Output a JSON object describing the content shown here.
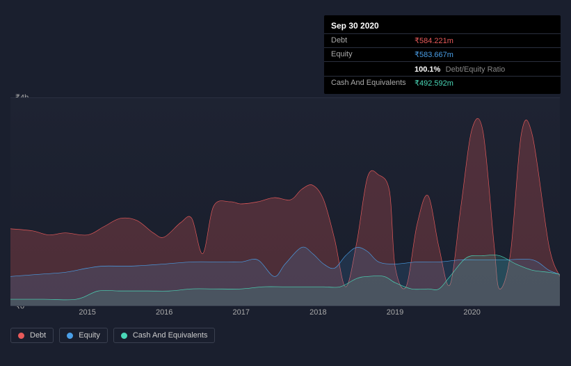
{
  "tooltip": {
    "date": "Sep 30 2020",
    "debt_label": "Debt",
    "debt_value": "₹584.221m",
    "debt_color": "#e85a5a",
    "equity_label": "Equity",
    "equity_value": "₹583.667m",
    "equity_color": "#4a9fe8",
    "ratio_value": "100.1%",
    "ratio_label": "Debt/Equity Ratio",
    "cash_label": "Cash And Equivalents",
    "cash_value": "₹492.592m",
    "cash_color": "#4ad8b8"
  },
  "chart": {
    "type": "area",
    "background_color": "#1a1f2e",
    "grid_color": "#2a3040",
    "y_axis": {
      "ticks": [
        {
          "pos": 0,
          "label": "₹4b"
        },
        {
          "pos": 1,
          "label": "₹0"
        }
      ],
      "ymin": 0,
      "ymax": 4
    },
    "x_axis": {
      "labels": [
        "2015",
        "2016",
        "2017",
        "2018",
        "2019",
        "2020"
      ],
      "positions_pct": [
        14,
        28,
        42,
        56,
        70,
        84
      ]
    },
    "series": [
      {
        "name": "Debt",
        "color": "#e85a5a",
        "fill_opacity": 0.25,
        "line_width": 2,
        "points_pct": [
          [
            0,
            63
          ],
          [
            4,
            64
          ],
          [
            7,
            66
          ],
          [
            10,
            65
          ],
          [
            14,
            66
          ],
          [
            17,
            62
          ],
          [
            20,
            58
          ],
          [
            23,
            59
          ],
          [
            26,
            65
          ],
          [
            28,
            67
          ],
          [
            31,
            60
          ],
          [
            33,
            58
          ],
          [
            35,
            75
          ],
          [
            37,
            52
          ],
          [
            40,
            50
          ],
          [
            42,
            51
          ],
          [
            45,
            50
          ],
          [
            48,
            48
          ],
          [
            51,
            49
          ],
          [
            53,
            44
          ],
          [
            55,
            42
          ],
          [
            57,
            49
          ],
          [
            59,
            68
          ],
          [
            61,
            91
          ],
          [
            63,
            70
          ],
          [
            65,
            38
          ],
          [
            67,
            37
          ],
          [
            69,
            45
          ],
          [
            70,
            81
          ],
          [
            72,
            91
          ],
          [
            74,
            61
          ],
          [
            76,
            47
          ],
          [
            78,
            72
          ],
          [
            80,
            90
          ],
          [
            82,
            52
          ],
          [
            84,
            15
          ],
          [
            86,
            16
          ],
          [
            88,
            70
          ],
          [
            89,
            92
          ],
          [
            91,
            75
          ],
          [
            93,
            17
          ],
          [
            95,
            18
          ],
          [
            98,
            71
          ],
          [
            100,
            86
          ]
        ]
      },
      {
        "name": "Equity",
        "color": "#4a9fe8",
        "fill_opacity": 0.15,
        "line_width": 2,
        "points_pct": [
          [
            0,
            86
          ],
          [
            5,
            85
          ],
          [
            10,
            84
          ],
          [
            14,
            82
          ],
          [
            17,
            81
          ],
          [
            22,
            81
          ],
          [
            28,
            80
          ],
          [
            33,
            79
          ],
          [
            38,
            79
          ],
          [
            42,
            79
          ],
          [
            45,
            78
          ],
          [
            48,
            86
          ],
          [
            50,
            80
          ],
          [
            53,
            72
          ],
          [
            55,
            75
          ],
          [
            57,
            80
          ],
          [
            59,
            82
          ],
          [
            61,
            76
          ],
          [
            63,
            72
          ],
          [
            65,
            74
          ],
          [
            67,
            79
          ],
          [
            70,
            80
          ],
          [
            74,
            79
          ],
          [
            78,
            79
          ],
          [
            82,
            78
          ],
          [
            86,
            78
          ],
          [
            90,
            78
          ],
          [
            95,
            78
          ],
          [
            98,
            83
          ],
          [
            100,
            85
          ]
        ]
      },
      {
        "name": "Cash And Equivalents",
        "color": "#4ad8b8",
        "fill_opacity": 0.15,
        "line_width": 2,
        "points_pct": [
          [
            0,
            97
          ],
          [
            6,
            97
          ],
          [
            12,
            97
          ],
          [
            16,
            93
          ],
          [
            20,
            93
          ],
          [
            25,
            93
          ],
          [
            29,
            93
          ],
          [
            33,
            92
          ],
          [
            37,
            92
          ],
          [
            42,
            92
          ],
          [
            46,
            91
          ],
          [
            50,
            91
          ],
          [
            54,
            91
          ],
          [
            57,
            91
          ],
          [
            60,
            91
          ],
          [
            63,
            87
          ],
          [
            65,
            86
          ],
          [
            68,
            86
          ],
          [
            70,
            89
          ],
          [
            73,
            92
          ],
          [
            76,
            92
          ],
          [
            78,
            92
          ],
          [
            80,
            86
          ],
          [
            83,
            77
          ],
          [
            86,
            76
          ],
          [
            89,
            76
          ],
          [
            92,
            80
          ],
          [
            95,
            83
          ],
          [
            98,
            84
          ],
          [
            100,
            85
          ]
        ]
      }
    ],
    "legend": {
      "items": [
        {
          "label": "Debt",
          "color": "#e85a5a"
        },
        {
          "label": "Equity",
          "color": "#4a9fe8"
        },
        {
          "label": "Cash And Equivalents",
          "color": "#4ad8b8"
        }
      ]
    }
  }
}
